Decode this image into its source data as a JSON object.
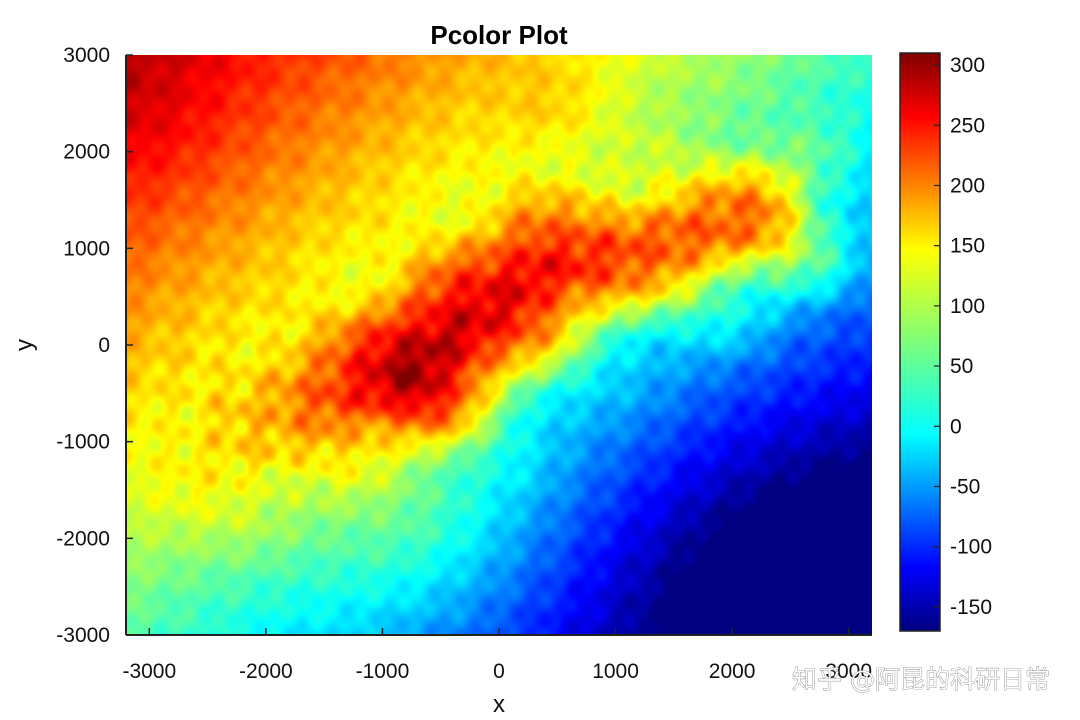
{
  "chart_data": {
    "type": "heatmap",
    "title": "Pcolor Plot",
    "xlabel": "x",
    "ylabel": "y",
    "xlim": [
      -3200,
      3200
    ],
    "ylim": [
      -3000,
      3000
    ],
    "x_ticks": [
      -3000,
      -2000,
      -1000,
      0,
      1000,
      2000,
      3000
    ],
    "y_ticks": [
      -3000,
      -2000,
      -1000,
      0,
      1000,
      2000,
      3000
    ],
    "colorbar": {
      "colormap": "jet",
      "clim": [
        -170,
        310
      ],
      "ticks": [
        -150,
        -100,
        -50,
        0,
        50,
        100,
        150,
        200,
        250,
        300
      ]
    },
    "ridge_crest_points": [
      {
        "x": -2000,
        "y": -800,
        "value": 160
      },
      {
        "x": -1300,
        "y": -500,
        "value": 230
      },
      {
        "x": -800,
        "y": -300,
        "value": 300
      },
      {
        "x": -300,
        "y": 200,
        "value": 270
      },
      {
        "x": 400,
        "y": 800,
        "value": 250
      },
      {
        "x": 1200,
        "y": 1000,
        "value": 210
      },
      {
        "x": 2100,
        "y": 1300,
        "value": 200
      }
    ],
    "basin_min": {
      "x": 2900,
      "y": -2700,
      "value": -170
    }
  },
  "watermark": "知乎 @阿昆的科研日常"
}
